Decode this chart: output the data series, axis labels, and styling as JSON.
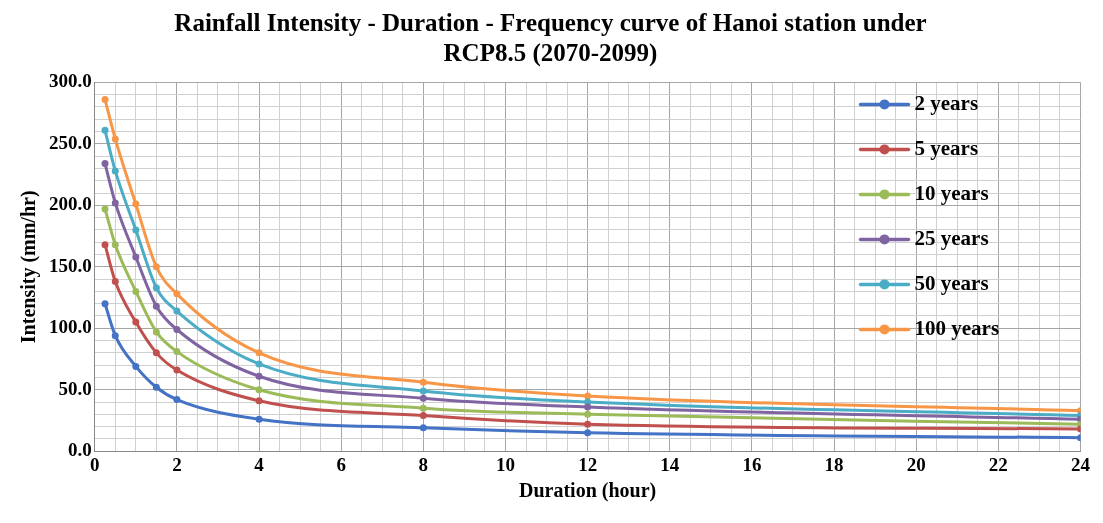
{
  "chart_data": {
    "type": "line",
    "title": "Rainfall Intensity - Duration - Frequency curve of Hanoi station under RCP8.5 (2070-2099)",
    "xlabel": "Duration (hour)",
    "ylabel": "Intensity (mm/hr)",
    "x": [
      0.25,
      0.5,
      1,
      1.5,
      2,
      4,
      8,
      12,
      24
    ],
    "series": [
      {
        "name": "2 years",
        "color": "#4472c4",
        "values": [
          120,
          94,
          69,
          52,
          42,
          26,
          19,
          15,
          11
        ]
      },
      {
        "name": "5 years",
        "color": "#c0504d",
        "values": [
          168,
          138,
          105,
          80,
          66,
          41,
          29,
          22,
          18
        ]
      },
      {
        "name": "10 years",
        "color": "#9bbb59",
        "values": [
          197,
          168,
          130,
          97,
          81,
          50,
          35,
          30,
          22
        ]
      },
      {
        "name": "25 years",
        "color": "#8064a2",
        "values": [
          234,
          202,
          158,
          118,
          99,
          61,
          43,
          36,
          26
        ]
      },
      {
        "name": "50 years",
        "color": "#4bacc6",
        "values": [
          261,
          228,
          180,
          133,
          114,
          71,
          49,
          40,
          29
        ]
      },
      {
        "name": "100 years",
        "color": "#f79646",
        "values": [
          286,
          254,
          201,
          150,
          128,
          80,
          56,
          45,
          33
        ]
      }
    ],
    "xlim": [
      0,
      24
    ],
    "xticks": [
      0,
      {
        "value": 0.5,
        "label": null
      },
      {
        "value": 1,
        "label": null
      },
      {
        "value": 1.5,
        "label": null
      },
      2,
      {
        "value": 2.5,
        "label": null
      },
      {
        "value": 3,
        "label": null
      },
      {
        "value": 3.5,
        "label": null
      },
      4,
      {
        "value": 4.5,
        "label": null
      },
      {
        "value": 5,
        "label": null
      },
      {
        "value": 5.5,
        "label": null
      },
      6,
      {
        "value": 6.5,
        "label": null
      },
      {
        "value": 7,
        "label": null
      },
      {
        "value": 7.5,
        "label": null
      },
      8,
      {
        "value": 8.5,
        "label": null
      },
      {
        "value": 9,
        "label": null
      },
      {
        "value": 9.5,
        "label": null
      },
      10,
      {
        "value": 10.5,
        "label": null
      },
      {
        "value": 11,
        "label": null
      },
      {
        "value": 11.5,
        "label": null
      },
      12,
      {
        "value": 12.5,
        "label": null
      },
      {
        "value": 13,
        "label": null
      },
      {
        "value": 13.5,
        "label": null
      },
      14,
      {
        "value": 14.5,
        "label": null
      },
      {
        "value": 15,
        "label": null
      },
      {
        "value": 15.5,
        "label": null
      },
      16,
      {
        "value": 16.5,
        "label": null
      },
      {
        "value": 17,
        "label": null
      },
      {
        "value": 17.5,
        "label": null
      },
      18,
      {
        "value": 18.5,
        "label": null
      },
      {
        "value": 19,
        "label": null
      },
      {
        "value": 19.5,
        "label": null
      },
      20,
      {
        "value": 20.5,
        "label": null
      },
      {
        "value": 21,
        "label": null
      },
      {
        "value": 21.5,
        "label": null
      },
      22,
      {
        "value": 22.5,
        "label": null
      },
      {
        "value": 23,
        "label": null
      },
      {
        "value": 23.5,
        "label": null
      },
      24
    ],
    "ylim": [
      0,
      300
    ],
    "yticks": [
      {
        "value": 0,
        "label": "0.0"
      },
      {
        "value": 10,
        "label": null
      },
      {
        "value": 20,
        "label": null
      },
      {
        "value": 30,
        "label": null
      },
      {
        "value": 40,
        "label": null
      },
      {
        "value": 50,
        "label": "50.0"
      },
      {
        "value": 60,
        "label": null
      },
      {
        "value": 70,
        "label": null
      },
      {
        "value": 80,
        "label": null
      },
      {
        "value": 90,
        "label": null
      },
      {
        "value": 100,
        "label": "100.0"
      },
      {
        "value": 110,
        "label": null
      },
      {
        "value": 120,
        "label": null
      },
      {
        "value": 130,
        "label": null
      },
      {
        "value": 140,
        "label": null
      },
      {
        "value": 150,
        "label": "150.0"
      },
      {
        "value": 160,
        "label": null
      },
      {
        "value": 170,
        "label": null
      },
      {
        "value": 180,
        "label": null
      },
      {
        "value": 190,
        "label": null
      },
      {
        "value": 200,
        "label": "200.0"
      },
      {
        "value": 210,
        "label": null
      },
      {
        "value": 220,
        "label": null
      },
      {
        "value": 230,
        "label": null
      },
      {
        "value": 240,
        "label": null
      },
      {
        "value": 250,
        "label": "250.0"
      },
      {
        "value": 260,
        "label": null
      },
      {
        "value": 270,
        "label": null
      },
      {
        "value": 280,
        "label": null
      },
      {
        "value": 290,
        "label": null
      },
      {
        "value": 300,
        "label": "300.0"
      }
    ],
    "grid": true,
    "legend": "top right",
    "marker": "circle",
    "line_style": "solid"
  }
}
